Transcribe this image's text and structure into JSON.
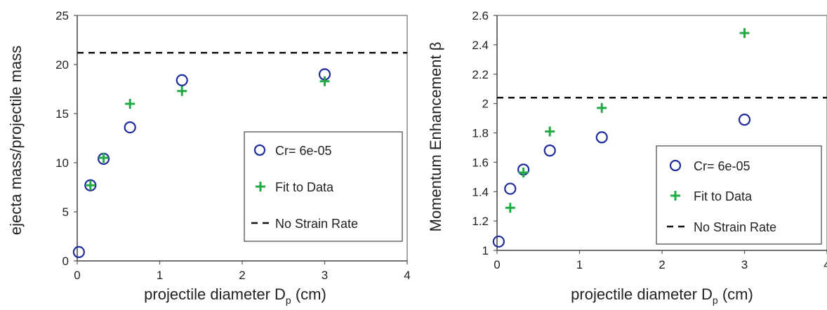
{
  "chart_data": [
    {
      "type": "scatter",
      "xlabel": "projectile diameter D",
      "xlabel_sub": "p",
      "xlabel_unit": " (cm)",
      "ylabel": "ejecta mass/projectile mass",
      "xlim": [
        0,
        4
      ],
      "ylim": [
        0,
        25
      ],
      "xticks": [
        "0",
        "1",
        "2",
        "3",
        "4"
      ],
      "yticks": [
        "0",
        "5",
        "10",
        "15",
        "20",
        "25"
      ],
      "grid": false,
      "legend_position": "lower-right",
      "series": [
        {
          "name": "Cr= 6e-05",
          "marker": "open-circle",
          "color": "#1f2d9b",
          "x": [
            0.02,
            0.16,
            0.32,
            0.64,
            1.27,
            3.0
          ],
          "y": [
            0.9,
            7.7,
            10.4,
            13.6,
            18.4,
            19.0
          ]
        },
        {
          "name": "Fit to Data",
          "marker": "plus",
          "color": "#22aa44",
          "x": [
            0.16,
            0.32,
            0.64,
            1.27,
            3.0
          ],
          "y": [
            7.7,
            10.5,
            16.0,
            17.3,
            18.3
          ]
        },
        {
          "name": "No Strain Rate",
          "marker": "dashed-line",
          "color": "#111111",
          "hline": 21.2
        }
      ]
    },
    {
      "type": "scatter",
      "xlabel": "projectile diameter D",
      "xlabel_sub": "p",
      "xlabel_unit": " (cm)",
      "ylabel": "Momentum Enhancement β",
      "xlim": [
        0,
        4
      ],
      "ylim": [
        1,
        2.6
      ],
      "xticks": [
        "0",
        "1",
        "2",
        "3",
        "4"
      ],
      "yticks": [
        "1",
        "1.2",
        "1.4",
        "1.6",
        "1.8",
        "2",
        "2.2",
        "2.4",
        "2.6"
      ],
      "grid": false,
      "legend_position": "lower-right",
      "series": [
        {
          "name": "Cr= 6e-05",
          "marker": "open-circle",
          "color": "#1f2d9b",
          "x": [
            0.02,
            0.16,
            0.32,
            0.64,
            1.27,
            3.0
          ],
          "y": [
            1.06,
            1.42,
            1.55,
            1.68,
            1.77,
            1.89
          ]
        },
        {
          "name": "Fit to Data",
          "marker": "plus",
          "color": "#22aa44",
          "x": [
            0.16,
            0.32,
            0.64,
            1.27,
            3.0
          ],
          "y": [
            1.29,
            1.53,
            1.81,
            1.97,
            2.48
          ]
        },
        {
          "name": "No Strain Rate",
          "marker": "dashed-line",
          "color": "#111111",
          "hline": 2.04
        }
      ]
    }
  ]
}
